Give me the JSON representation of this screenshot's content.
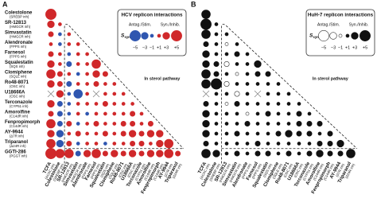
{
  "rows": [
    {
      "name": "Colestolone",
      "target": "(SREBP inh)"
    },
    {
      "name": "SR-12813",
      "target": "(HMGCR inh)"
    },
    {
      "name": "Simvastatin",
      "target": "(HMGCR inh)"
    },
    {
      "name": "Alendronate",
      "target": "(FPPS inh)"
    },
    {
      "name": "Farnesol",
      "target": "(FPPS inh)"
    },
    {
      "name": "Squalestatin",
      "target": "(SQS inh)"
    },
    {
      "name": "Clomiphene",
      "target": "(SQLE inh)"
    },
    {
      "name": "Ro48-8071",
      "target": "(OSC inh)"
    },
    {
      "name": "U18666A",
      "target": "(OSC inh)"
    },
    {
      "name": "Terconazole",
      "target": "(CYP51 inh)"
    },
    {
      "name": "Amorolfine",
      "target": "(C14dR inh)"
    },
    {
      "name": "Fenpropimorph",
      "target": "(C14dR inh)"
    },
    {
      "name": "AY-9944",
      "target": "(Δ7R inh)"
    },
    {
      "name": "Triparanol",
      "target": "(Δ24R inh)"
    },
    {
      "name": "GGTI-286",
      "target": "(PGGT inh)"
    }
  ],
  "first_column": {
    "name": "TCFA",
    "target": "(ACAC inh)"
  },
  "panels": [
    {
      "label": "A",
      "legend_title": "HCV replicon interactions",
      "antag_label": "Antag./Stim.",
      "syn_label": "Syn./Inhib.",
      "scale_label": "S",
      "scale_sub": "syn",
      "scale_ticks": [
        {
          "value": -5,
          "label": "−5"
        },
        {
          "value": -3,
          "label": "−3"
        },
        {
          "value": -1,
          "label": "−1"
        },
        {
          "value": 1,
          "label": "+1"
        },
        {
          "value": 3,
          "label": "+3"
        },
        {
          "value": 5,
          "label": "+5"
        }
      ],
      "annotation": "In sterol pathway",
      "neg_color": "#2f56b0",
      "pos_color": "#d0282a",
      "neg_stroke": "#2f56b0",
      "pos_stroke": "#d0282a",
      "values": [
        [
          5
        ],
        [
          3,
          1
        ],
        [
          2,
          -1,
          1
        ],
        [
          1,
          -1,
          1,
          1
        ],
        [
          2,
          1,
          -1,
          1,
          1
        ],
        [
          3,
          1,
          -2,
          1,
          1,
          4
        ],
        [
          4,
          2,
          1,
          -1,
          1,
          3,
          2
        ],
        [
          3,
          2,
          -2,
          1,
          1,
          2,
          1,
          1
        ],
        [
          null,
          3,
          -1,
          -4,
          1,
          null,
          1,
          1,
          1
        ],
        [
          3,
          -2,
          -1,
          1,
          1,
          1,
          2,
          1,
          1,
          1
        ],
        [
          2,
          -2,
          -1,
          1,
          -1,
          1,
          1,
          1,
          1,
          2,
          1
        ],
        [
          4,
          -2,
          2,
          -1,
          1,
          2,
          1,
          1,
          2,
          2,
          1,
          2
        ],
        [
          3,
          -3,
          1,
          2,
          1,
          1,
          2,
          1,
          2,
          3,
          2,
          3,
          3
        ],
        [
          4,
          -3,
          2,
          -1,
          1,
          1,
          -1,
          1,
          1,
          2,
          2,
          1,
          3,
          4
        ],
        [
          5,
          4,
          4,
          -2,
          3,
          4,
          2,
          3,
          2,
          3,
          2,
          3,
          3,
          4,
          2
        ]
      ]
    },
    {
      "label": "B",
      "legend_title": "HuH-7 replicon interactions",
      "antag_label": "Antag./Stim.",
      "syn_label": "Syn./Inhib.",
      "scale_label": "S",
      "scale_sub": "syn",
      "scale_ticks": [
        {
          "value": -5,
          "label": "−5"
        },
        {
          "value": -3,
          "label": "−3"
        },
        {
          "value": -1,
          "label": "−1"
        },
        {
          "value": 1,
          "label": "+1"
        },
        {
          "value": 3,
          "label": "+3"
        },
        {
          "value": 5,
          "label": "+5"
        }
      ],
      "annotation": "In sterol pathway",
      "neg_color": "#ffffff",
      "pos_color": "#111111",
      "neg_stroke": "#333333",
      "pos_stroke": "#111111",
      "values": [
        [
          4
        ],
        [
          5,
          1
        ],
        [
          4,
          1,
          1
        ],
        [
          2,
          1,
          -1,
          1
        ],
        [
          3,
          1,
          1,
          2,
          1
        ],
        [
          3,
          2,
          -2,
          1,
          1,
          3
        ],
        [
          4,
          2,
          1,
          -1,
          1,
          2,
          2
        ],
        [
          4,
          5,
          -2,
          1,
          1,
          1,
          1,
          1
        ],
        [
          null,
          1,
          1,
          -2,
          1,
          null,
          1,
          1,
          1
        ],
        [
          2,
          1,
          -1,
          2,
          1,
          1,
          1,
          1,
          1,
          1
        ],
        [
          3,
          1,
          1,
          1,
          -1,
          1,
          2,
          1,
          1,
          2,
          1
        ],
        [
          3,
          1,
          1,
          1,
          2,
          1,
          1,
          1,
          1,
          2,
          2,
          2
        ],
        [
          3,
          1,
          1,
          2,
          1,
          1,
          1,
          2,
          3,
          2,
          2,
          1,
          2
        ],
        [
          2,
          1,
          1,
          1,
          1,
          2,
          1,
          1,
          1,
          1,
          1,
          2,
          2,
          3
        ],
        [
          4,
          3,
          1,
          2,
          1,
          2,
          2,
          1,
          2,
          1,
          2,
          3,
          2,
          2,
          4
        ]
      ]
    }
  ]
}
